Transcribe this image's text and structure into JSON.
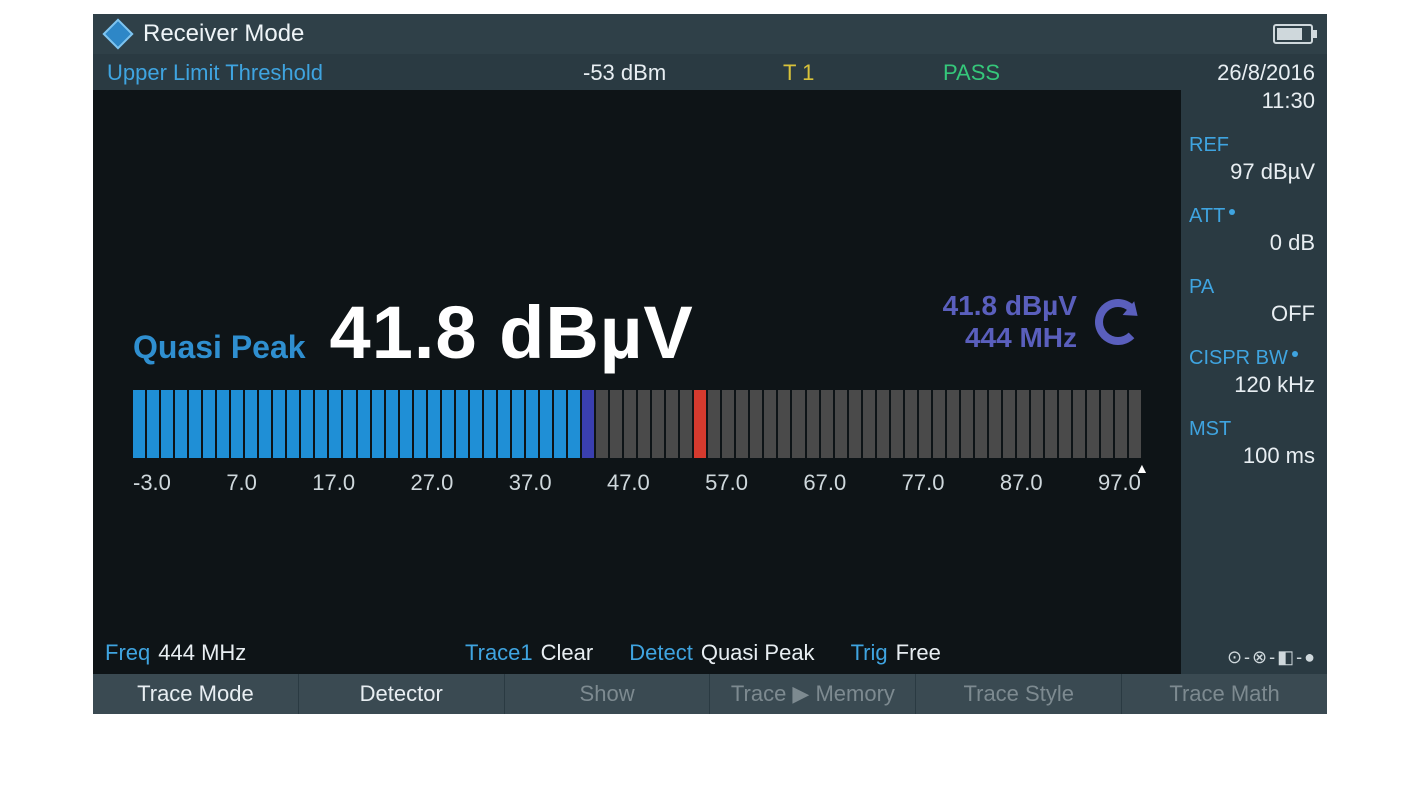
{
  "header": {
    "title": "Receiver Mode",
    "battery_percent": 70
  },
  "status": {
    "limit_label": "Upper Limit Threshold",
    "limit_value": "-53 dBm",
    "trace_id": "T 1",
    "result": "PASS",
    "result_color": "#35c77a"
  },
  "datetime": {
    "date": "26/8/2016",
    "time": "11:30"
  },
  "params": {
    "ref": {
      "label": "REF",
      "value": "97 dBµV"
    },
    "att": {
      "label": "ATT",
      "value": "0 dB",
      "dot": true
    },
    "pa": {
      "label": "PA",
      "value": "OFF"
    },
    "bw": {
      "label": "CISPR BW",
      "value": "120 kHz",
      "dot": true
    },
    "mst": {
      "label": "MST",
      "value": "100 ms"
    }
  },
  "measurement": {
    "detector_name": "Quasi Peak",
    "value_text": "41.8 dBµV",
    "value_numeric": 41.8,
    "hold_value": "41.8 dBµV",
    "hold_freq": "444 MHz"
  },
  "bargraph": {
    "min": -3.0,
    "max": 97.0,
    "segment_count": 72,
    "fill_to": 41.8,
    "marker_at": 41.8,
    "limit_at": 53.0,
    "pointer_at": 97.0,
    "tick_labels": [
      "-3.0",
      "7.0",
      "17.0",
      "27.0",
      "37.0",
      "47.0",
      "57.0",
      "67.0",
      "77.0",
      "87.0",
      "97.0"
    ],
    "colors": {
      "on": "#1f8fd6",
      "off": "#4a4a4a",
      "marker": "#3a3fb0",
      "limit": "#d63a2e"
    }
  },
  "bottom": {
    "freq_label": "Freq",
    "freq_value": "444 MHz",
    "trace_label": "Trace1",
    "trace_value": "Clear",
    "detect_label": "Detect",
    "detect_value": "Quasi Peak",
    "trig_label": "Trig",
    "trig_value": "Free"
  },
  "softkeys": [
    {
      "label": "Trace Mode",
      "enabled": true
    },
    {
      "label": "Detector",
      "enabled": true
    },
    {
      "label": "Show",
      "enabled": false
    },
    {
      "label": "Trace ▶ Memory",
      "enabled": false
    },
    {
      "label": "Trace Style",
      "enabled": false
    },
    {
      "label": "Trace Math",
      "enabled": false
    }
  ],
  "icons": {
    "connectors": "⊙-⊗-◧-●"
  }
}
